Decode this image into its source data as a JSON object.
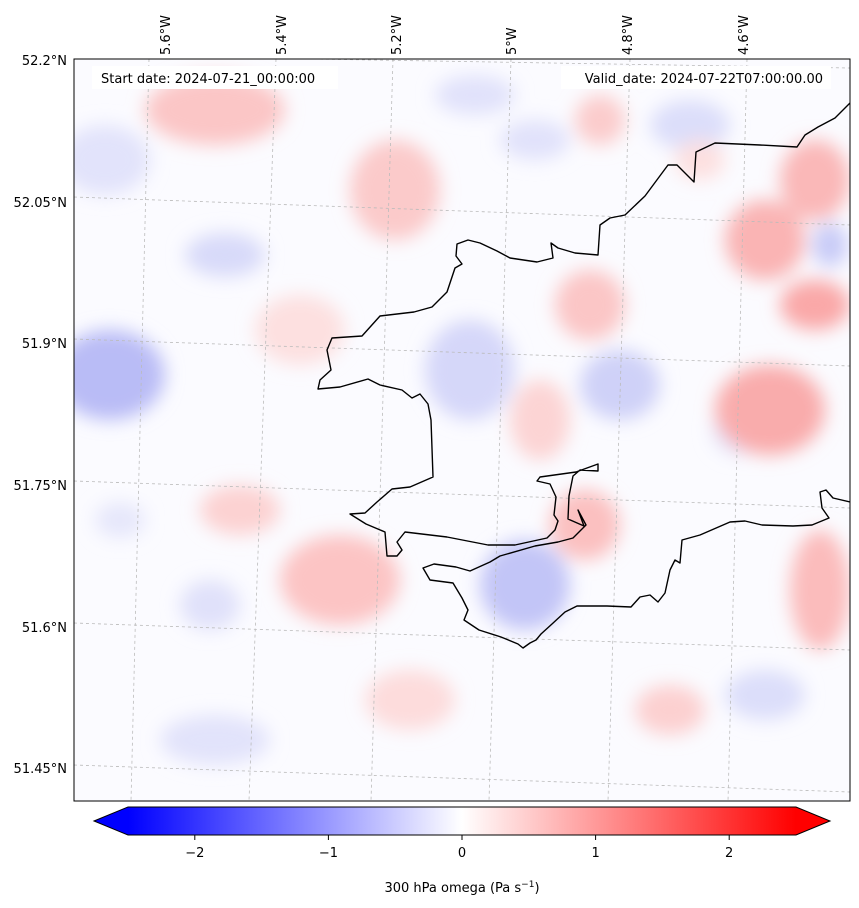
{
  "header": {
    "start_date": "Start date: 2024-07-21_00:00:00",
    "valid_date": "Valid_date: 2024-07-22T07:00:00.00"
  },
  "map": {
    "lon_labels": [
      "5.6°W",
      "5.4°W",
      "5.2°W",
      "5°W",
      "4.8°W",
      "4.6°W"
    ],
    "lat_labels": [
      "52.2°N",
      "52.05°N",
      "51.9°N",
      "51.75°N",
      "51.6°N",
      "51.45°N"
    ],
    "lon_range_deg": [
      -5.71,
      -4.5
    ],
    "lat_range_deg": [
      51.44,
      52.2
    ]
  },
  "colorbar": {
    "ticks": [
      "−2",
      "−1",
      "0",
      "1",
      "2"
    ],
    "tick_values": [
      -2,
      -1,
      0,
      1,
      2
    ],
    "range": [
      -2.5,
      2.5
    ],
    "label_main": "300 hPa omega (Pa s",
    "label_sup": "−1",
    "label_end": ")",
    "low_color": "#0000ff",
    "mid_color": "#ffffff",
    "high_color": "#ff0000"
  },
  "colors": {
    "coast": "#000000",
    "grid": "#bbbbbb"
  }
}
